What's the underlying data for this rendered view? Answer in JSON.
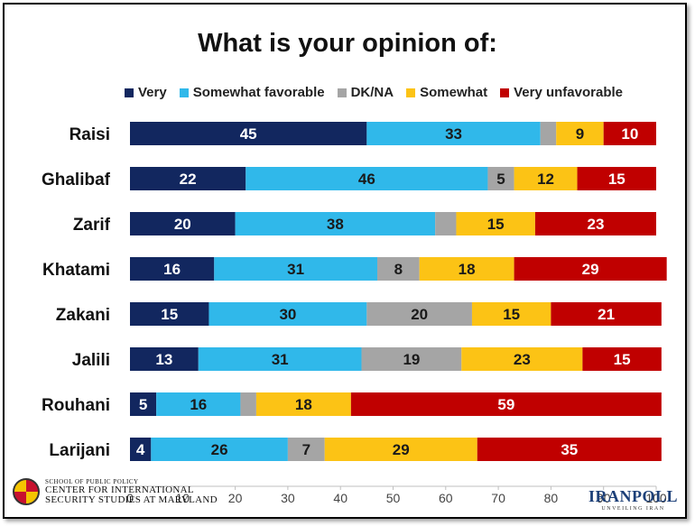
{
  "chart_data": {
    "type": "bar",
    "orientation": "horizontal",
    "stacked": true,
    "title": "What is your opinion of:",
    "categories": [
      "Raisi",
      "Ghalibaf",
      "Zarif",
      "Khatami",
      "Zakani",
      "Jalili",
      "Rouhani",
      "Larijani"
    ],
    "series": [
      {
        "name": "Very",
        "color": "#12275f",
        "values": [
          45,
          22,
          20,
          16,
          15,
          13,
          5,
          4
        ],
        "labels": [
          "45",
          "22",
          "20",
          "16",
          "15",
          "13",
          "5",
          "4"
        ]
      },
      {
        "name": "Somewhat favorable",
        "color": "#30b8ea",
        "values": [
          33,
          46,
          38,
          31,
          30,
          31,
          16,
          26
        ],
        "labels": [
          "33",
          "46",
          "38",
          "31",
          "30",
          "31",
          "16",
          "26"
        ]
      },
      {
        "name": "DK/NA",
        "color": "#a5a5a5",
        "values": [
          3,
          5,
          4,
          8,
          20,
          19,
          3,
          7
        ],
        "labels": [
          "",
          "5",
          "",
          "8",
          "20",
          "19",
          "",
          "7"
        ]
      },
      {
        "name": "Somewhat",
        "color": "#fcc315",
        "values": [
          9,
          12,
          15,
          18,
          15,
          23,
          18,
          29
        ],
        "labels": [
          "9",
          "12",
          "15",
          "18",
          "15",
          "23",
          "18",
          "29"
        ]
      },
      {
        "name": "Very unfavorable",
        "color": "#c00000",
        "values": [
          10,
          15,
          23,
          29,
          21,
          15,
          59,
          35
        ],
        "labels": [
          "10",
          "15",
          "23",
          "29",
          "21",
          "15",
          "59",
          "35"
        ]
      }
    ],
    "xlim": [
      0,
      100
    ],
    "xticks": [
      "0",
      "10",
      "20",
      "30",
      "40",
      "50",
      "60",
      "70",
      "80",
      "90",
      "100"
    ],
    "grid": false,
    "legend_position": "top"
  },
  "footer": {
    "cissm_line1": "SCHOOL OF PUBLIC POLICY",
    "cissm_line2": "CENTER FOR INTERNATIONAL",
    "cissm_line3": "SECURITY STUDIES AT MARYLAND",
    "iranpoll_logo": "IRANPOLL",
    "iranpoll_tagline": "UNVEILING IRAN"
  }
}
